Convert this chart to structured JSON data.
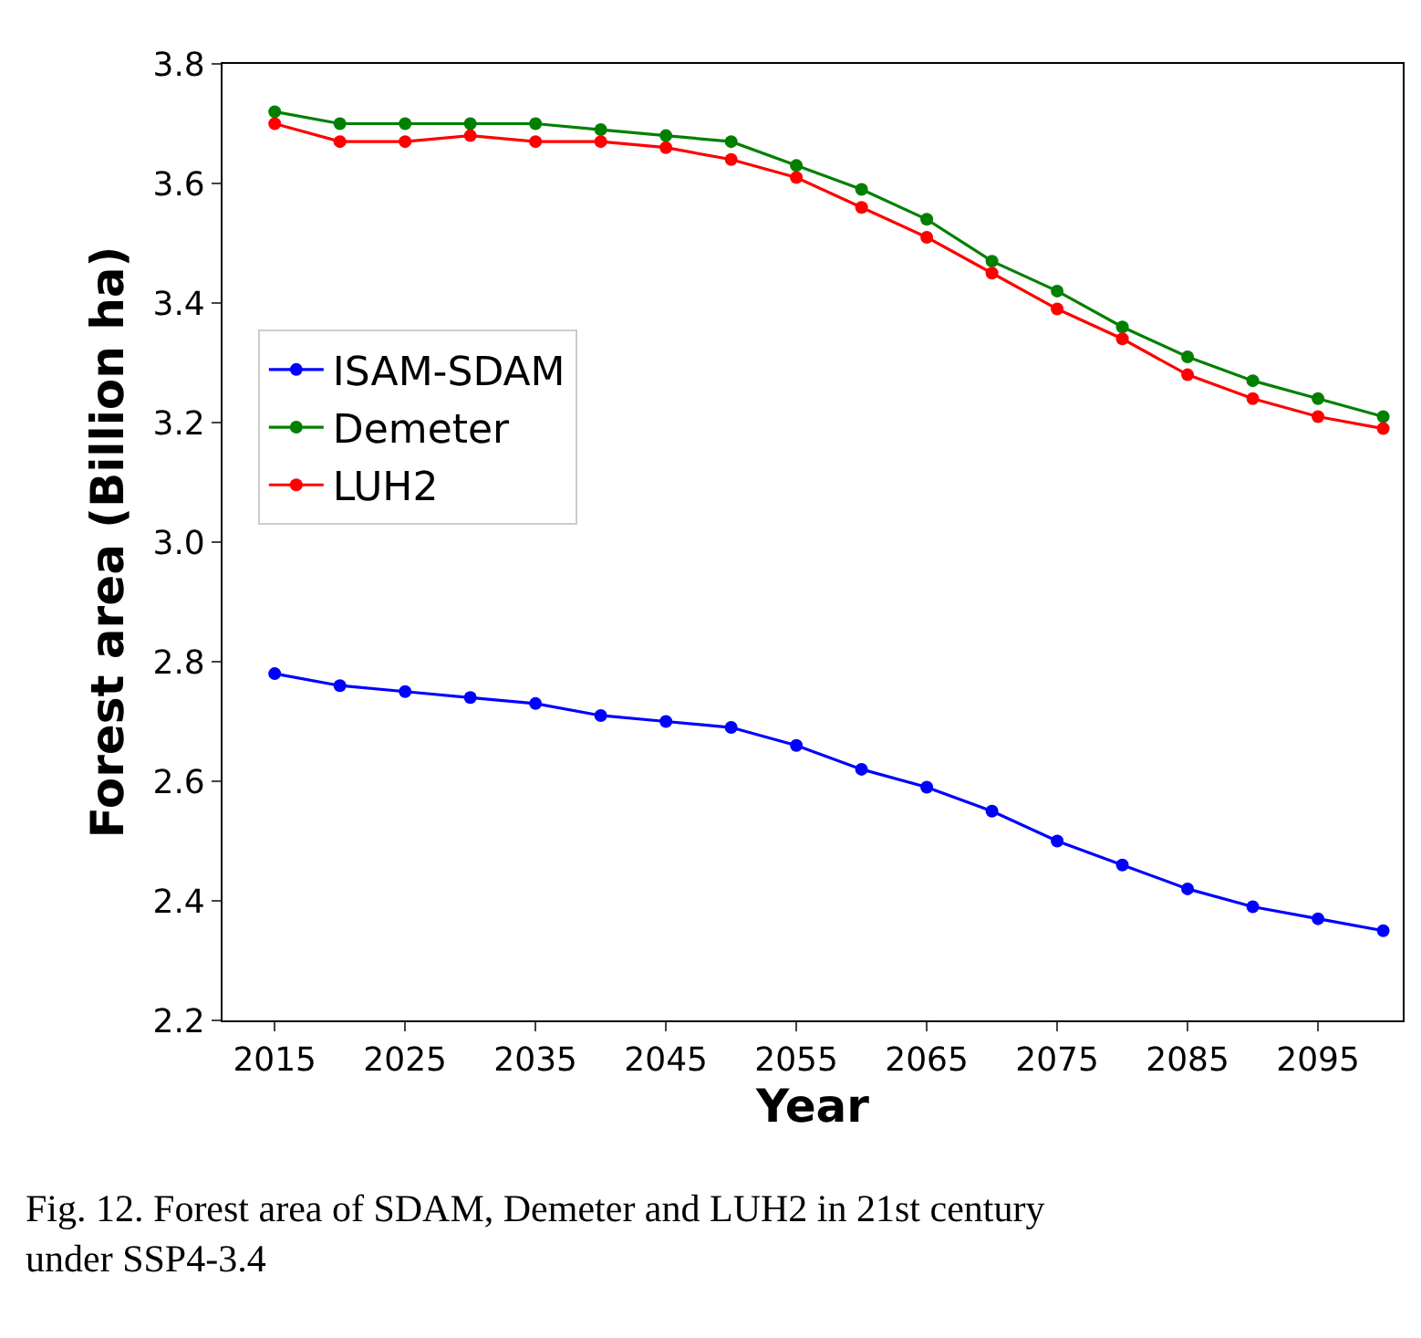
{
  "chart_data": {
    "type": "line",
    "xlabel": "Year",
    "ylabel": "Forest area (Billion ha)",
    "x": [
      2015,
      2020,
      2025,
      2030,
      2035,
      2040,
      2045,
      2050,
      2055,
      2060,
      2065,
      2070,
      2075,
      2080,
      2085,
      2090,
      2095,
      2100
    ],
    "series": [
      {
        "name": "ISAM-SDAM",
        "color": "#0000ff",
        "values": [
          2.78,
          2.76,
          2.75,
          2.74,
          2.73,
          2.71,
          2.7,
          2.69,
          2.66,
          2.62,
          2.59,
          2.55,
          2.5,
          2.46,
          2.42,
          2.39,
          2.37,
          2.35
        ]
      },
      {
        "name": "Demeter",
        "color": "#008000",
        "values": [
          3.72,
          3.7,
          3.7,
          3.7,
          3.7,
          3.69,
          3.68,
          3.67,
          3.63,
          3.59,
          3.54,
          3.47,
          3.42,
          3.36,
          3.31,
          3.27,
          3.24,
          3.21
        ]
      },
      {
        "name": "LUH2",
        "color": "#ff0000",
        "values": [
          3.7,
          3.67,
          3.67,
          3.68,
          3.67,
          3.67,
          3.66,
          3.64,
          3.61,
          3.56,
          3.51,
          3.45,
          3.39,
          3.34,
          3.28,
          3.24,
          3.21,
          3.19
        ]
      }
    ],
    "xlim": [
      2011,
      2101.5
    ],
    "xticks": [
      2015,
      2025,
      2035,
      2045,
      2055,
      2065,
      2075,
      2085,
      2095
    ],
    "ylim": [
      2.2,
      3.8
    ],
    "yticks": [
      {
        "value": 2.2,
        "label": "2.2"
      },
      {
        "value": 2.4,
        "label": "2.4"
      },
      {
        "value": 2.6,
        "label": "2.6"
      },
      {
        "value": 2.8,
        "label": "2.8"
      },
      {
        "value": 3.0,
        "label": "3.0"
      },
      {
        "value": 3.2,
        "label": "3.2"
      },
      {
        "value": 3.4,
        "label": "3.4"
      },
      {
        "value": 3.6,
        "label": "3.6"
      },
      {
        "value": 3.8,
        "label": "3.8"
      }
    ],
    "marker": "circle",
    "line_style": "solid",
    "legend": "left",
    "annotations": [
      "Fig. 12. Forest area of SDAM, Demeter and LUH2 in 21st century under SSP4-3.4"
    ]
  }
}
